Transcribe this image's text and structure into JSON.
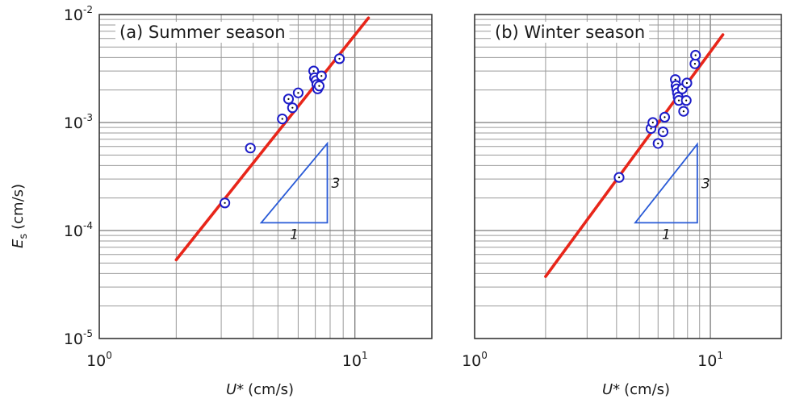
{
  "figure": {
    "ylabel": "E",
    "ylabel_sub": "s",
    "ylabel_unit": "(cm/s)",
    "xlabel": "U*",
    "xlabel_unit": "(cm/s)"
  },
  "chart_data": [
    {
      "type": "scatter",
      "title": "(a) Summer season",
      "xlabel": "U* (cm/s)",
      "ylabel": "Es (cm/s)",
      "xscale": "log",
      "yscale": "log",
      "xlim": [
        1,
        20
      ],
      "ylim": [
        1e-05,
        0.01
      ],
      "grid": true,
      "x_ticks": [
        {
          "base": "10",
          "exp": "0",
          "value": 1
        },
        {
          "base": "10",
          "exp": "1",
          "value": 10
        }
      ],
      "y_ticks": [
        {
          "base": "10",
          "exp": "-5",
          "value": 1e-05
        },
        {
          "base": "10",
          "exp": "-4",
          "value": 0.0001
        },
        {
          "base": "10",
          "exp": "-3",
          "value": 0.001
        },
        {
          "base": "10",
          "exp": "-2",
          "value": 0.01
        }
      ],
      "points": [
        {
          "x": 3.1,
          "y": 0.00018
        },
        {
          "x": 3.9,
          "y": 0.00058
        },
        {
          "x": 5.2,
          "y": 0.00108
        },
        {
          "x": 5.5,
          "y": 0.00165
        },
        {
          "x": 5.7,
          "y": 0.00137
        },
        {
          "x": 6.0,
          "y": 0.00188
        },
        {
          "x": 6.9,
          "y": 0.003
        },
        {
          "x": 6.95,
          "y": 0.0026
        },
        {
          "x": 7.05,
          "y": 0.00245
        },
        {
          "x": 7.1,
          "y": 0.00225
        },
        {
          "x": 7.15,
          "y": 0.00205
        },
        {
          "x": 7.25,
          "y": 0.00218
        },
        {
          "x": 7.4,
          "y": 0.0027
        },
        {
          "x": 8.7,
          "y": 0.0039
        }
      ],
      "fit_line": {
        "x": [
          2.0,
          11.3
        ],
        "y": [
          5.35e-05,
          0.0093
        ],
        "color": "#e8261a"
      },
      "slope_triangle": {
        "corners": [
          [
            4.3,
            0.000118
          ],
          [
            7.8,
            0.000118
          ],
          [
            7.8,
            0.00064
          ]
        ],
        "run_label": "1",
        "rise_label": "3",
        "color": "#2a5bd7"
      },
      "marker_color": "#1c1cc8"
    },
    {
      "type": "scatter",
      "title": "(b) Winter season",
      "xlabel": "U* (cm/s)",
      "ylabel": "",
      "xscale": "log",
      "yscale": "log",
      "xlim": [
        1,
        20
      ],
      "ylim": [
        1e-05,
        0.01
      ],
      "grid": true,
      "x_ticks": [
        {
          "base": "10",
          "exp": "0",
          "value": 1
        },
        {
          "base": "10",
          "exp": "1",
          "value": 10
        }
      ],
      "points": [
        {
          "x": 4.1,
          "y": 0.00031
        },
        {
          "x": 5.6,
          "y": 0.00088
        },
        {
          "x": 5.7,
          "y": 0.001
        },
        {
          "x": 6.0,
          "y": 0.00064
        },
        {
          "x": 6.3,
          "y": 0.00082
        },
        {
          "x": 6.4,
          "y": 0.00112
        },
        {
          "x": 7.1,
          "y": 0.0025
        },
        {
          "x": 7.15,
          "y": 0.0022
        },
        {
          "x": 7.2,
          "y": 0.00205
        },
        {
          "x": 7.25,
          "y": 0.00188
        },
        {
          "x": 7.3,
          "y": 0.00172
        },
        {
          "x": 7.35,
          "y": 0.0016
        },
        {
          "x": 7.6,
          "y": 0.00205
        },
        {
          "x": 7.7,
          "y": 0.00127
        },
        {
          "x": 7.9,
          "y": 0.0016
        },
        {
          "x": 7.95,
          "y": 0.00232
        },
        {
          "x": 8.6,
          "y": 0.0035
        },
        {
          "x": 8.65,
          "y": 0.0042
        }
      ],
      "fit_line": {
        "x": [
          2.0,
          11.3
        ],
        "y": [
          3.75e-05,
          0.0065
        ],
        "color": "#e8261a"
      },
      "slope_triangle": {
        "corners": [
          [
            4.8,
            0.000118
          ],
          [
            8.8,
            0.000118
          ],
          [
            8.8,
            0.00063
          ]
        ],
        "run_label": "1",
        "rise_label": "3",
        "color": "#2a5bd7"
      },
      "marker_color": "#1c1cc8"
    }
  ]
}
